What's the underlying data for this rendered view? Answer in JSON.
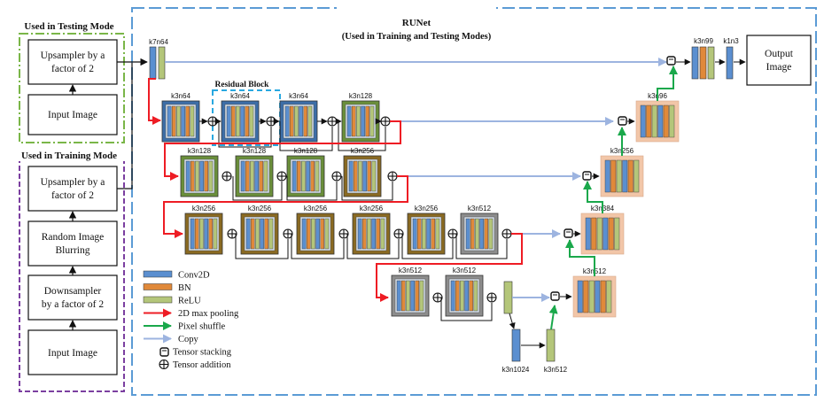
{
  "testing_panel": {
    "title": "Used in Testing Mode",
    "upsampler": [
      "Upsampler by a",
      "factor of 2"
    ],
    "input": "Input Image"
  },
  "training_panel": {
    "title": "Used in Training Mode",
    "upsampler": [
      "Upsampler by a",
      "factor of 2"
    ],
    "blurring": [
      "Random Image",
      "Blurring"
    ],
    "downsampler": [
      "Downsampler",
      "by a factor of 2"
    ],
    "input": "Input Image"
  },
  "runet": {
    "title": "RUNet",
    "subtitle": "(Used in Training and Testing Modes)",
    "residual_block_label": "Residual Block",
    "output": [
      "Output",
      "Image"
    ]
  },
  "layer_labels": {
    "first": "k7n64",
    "row1": [
      "k3n64",
      "k3n64",
      "k3n64",
      "k3n128"
    ],
    "row2": [
      "k3n128",
      "k3n128",
      "k3n128",
      "k3n256"
    ],
    "row3": [
      "k3n256",
      "k3n256",
      "k3n256",
      "k3n256",
      "k3n256",
      "k3n512"
    ],
    "row4": [
      "k3n512",
      "k3n512"
    ],
    "bottom": [
      "k3n1024",
      "k3n512"
    ],
    "decoder": [
      "k3n512",
      "k3n384",
      "k3n256",
      "k3n96"
    ],
    "final": [
      "k3n99",
      "k1n3"
    ]
  },
  "legend": [
    {
      "label": "Conv2D",
      "kind": "block",
      "color": "#5b8fd0"
    },
    {
      "label": "BN",
      "kind": "block",
      "color": "#e0893a"
    },
    {
      "label": "ReLU",
      "kind": "block",
      "color": "#b4c67a"
    },
    {
      "label": "2D max pooling",
      "kind": "arrow",
      "color": "#ee1c24"
    },
    {
      "label": "Pixel shuffle",
      "kind": "arrow",
      "color": "#1aa84b"
    },
    {
      "label": "Copy",
      "kind": "arrow",
      "color": "#9db4e0"
    },
    {
      "label": "Tensor stacking",
      "kind": "stack"
    },
    {
      "label": "Tensor addition",
      "kind": "add"
    }
  ],
  "colors": {
    "conv": "#5b8fd0",
    "bn": "#e0893a",
    "relu": "#b4c67a",
    "pool": "#ee1c24",
    "shuffle": "#1aa84b",
    "copy": "#9db4e0",
    "frame": "#5b9bd5",
    "testing_frame": "#7ab648",
    "training_frame": "#7b3fa0",
    "box_blue": "#3d6ea8",
    "box_green": "#6a8f3a",
    "box_brown": "#8a6a22",
    "box_gray": "#8d8d8d",
    "box_peach": "#f2c6a8"
  }
}
